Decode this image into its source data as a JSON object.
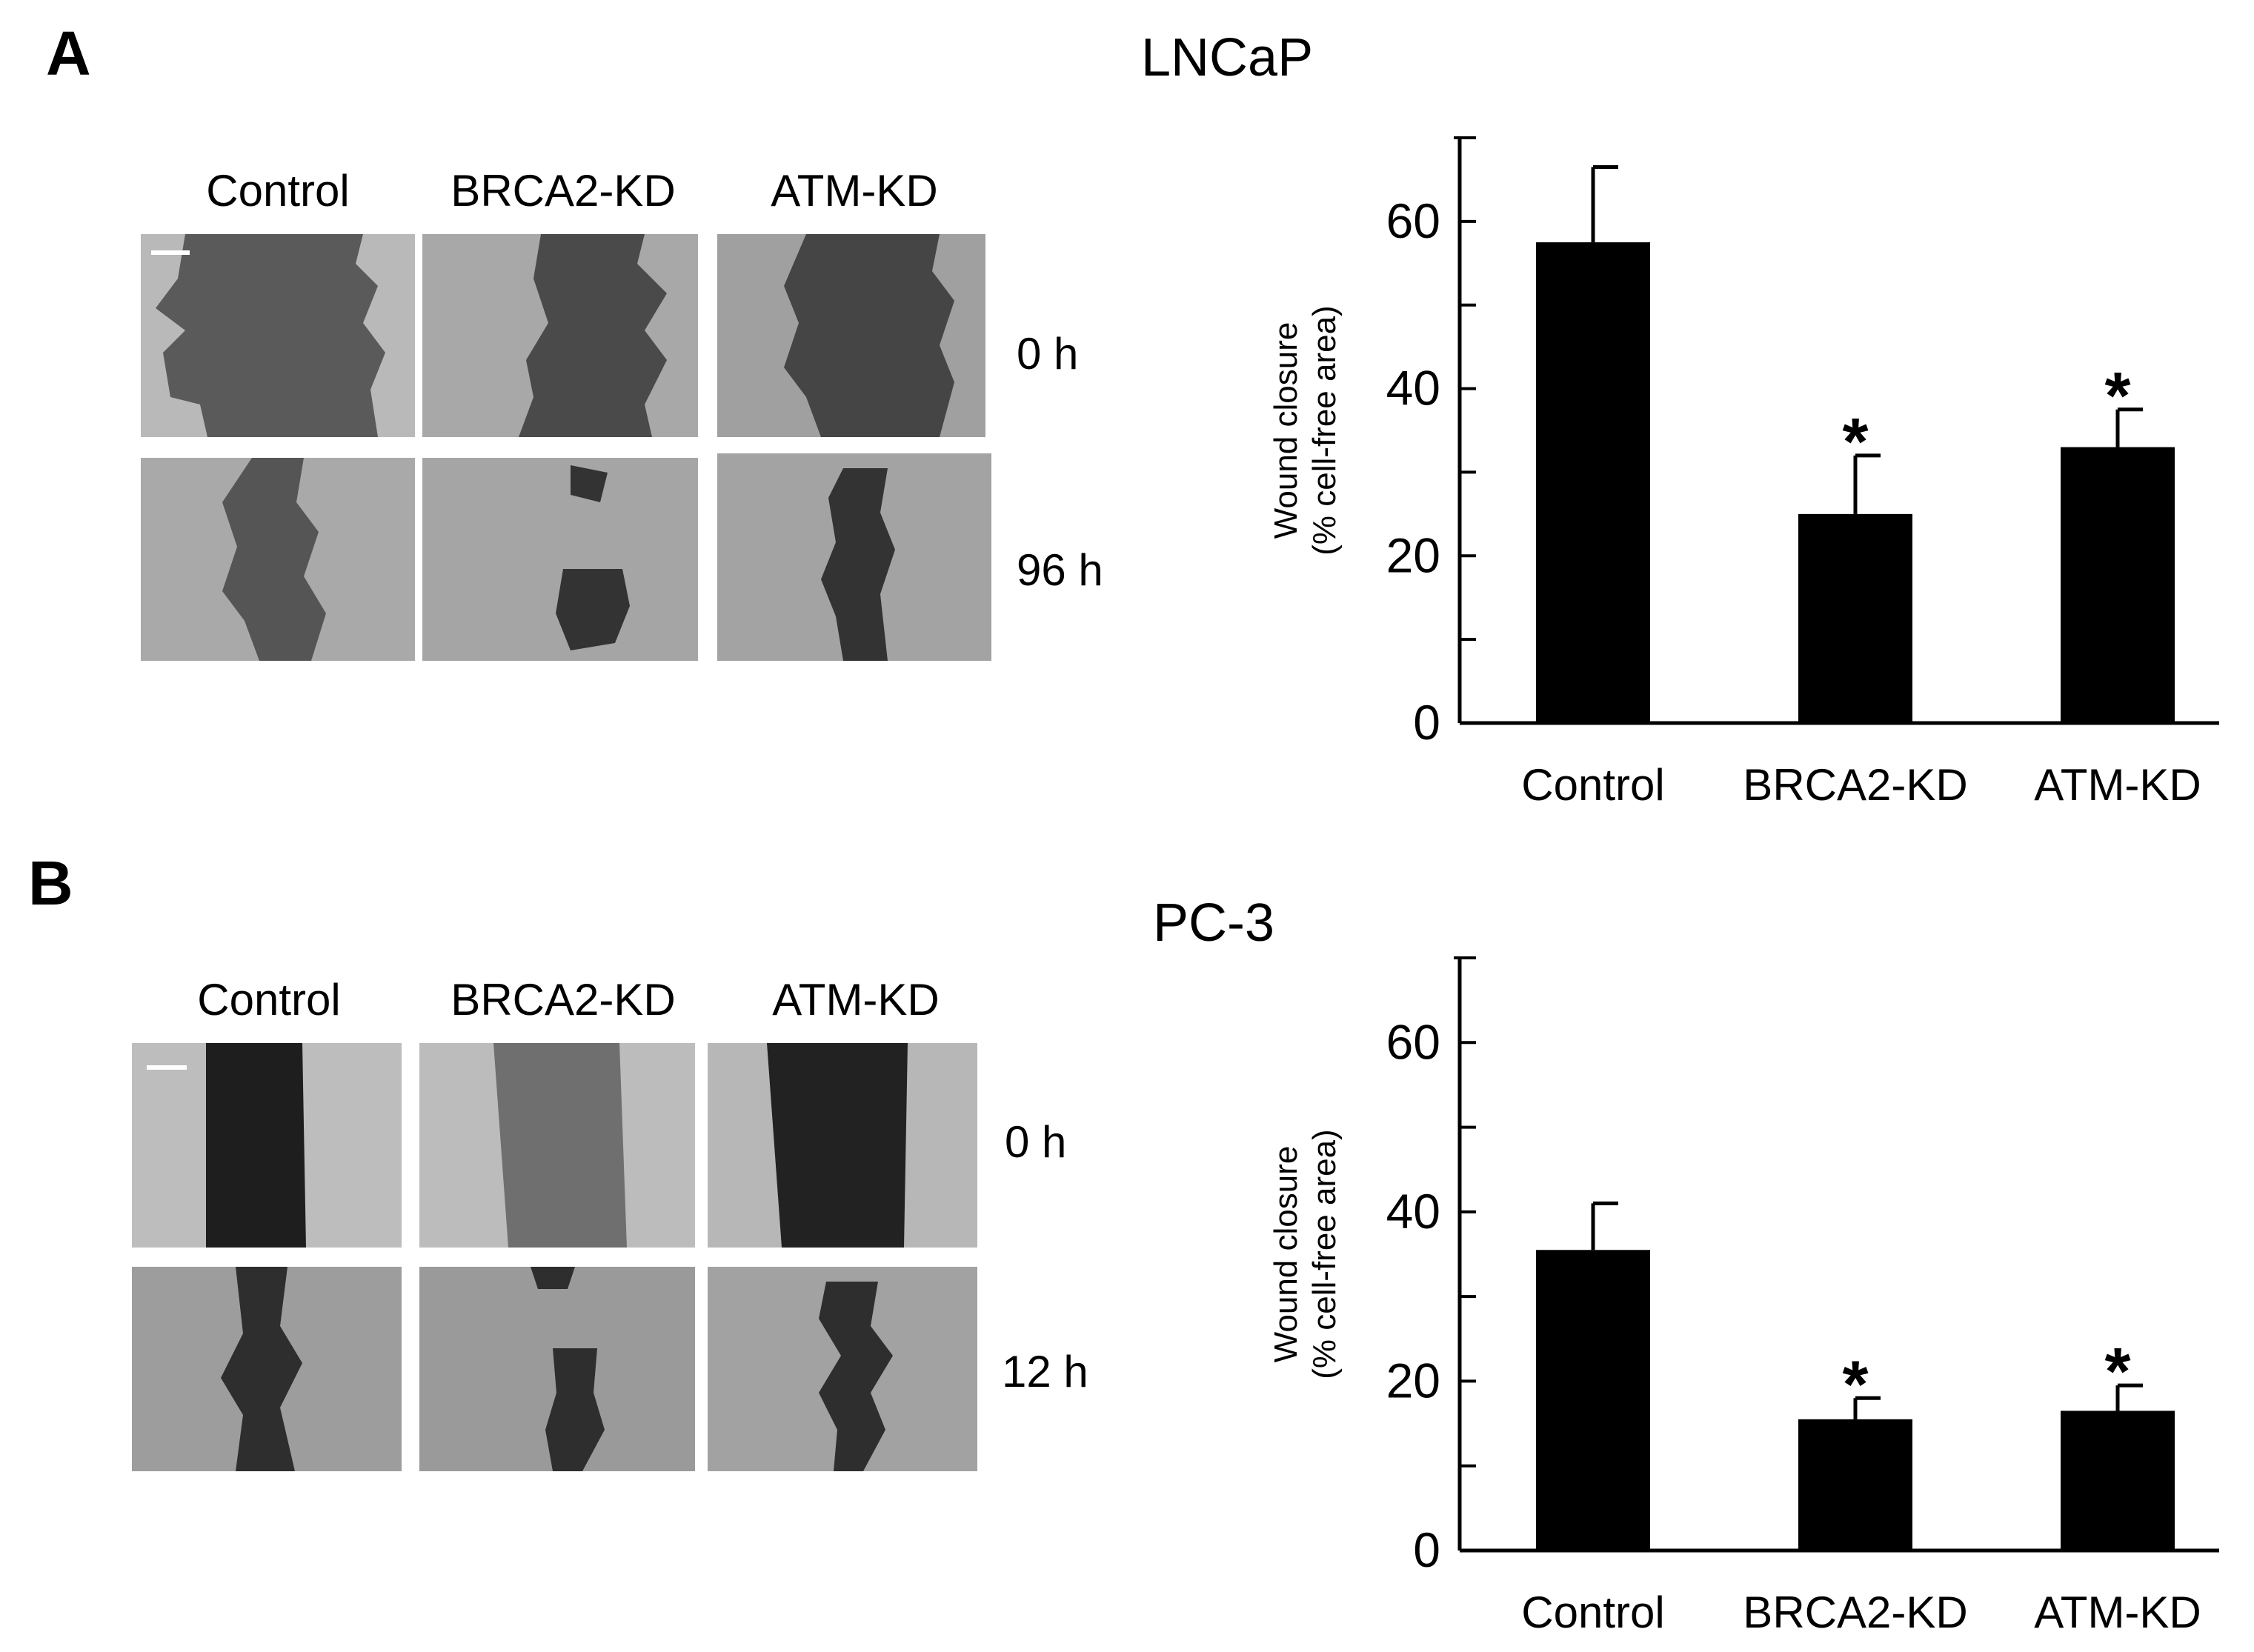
{
  "panels": [
    {
      "letter": "A",
      "cell_line": "LNCaP",
      "column_labels": [
        "Control",
        "BRCA2-KD",
        "ATM-KD"
      ],
      "time_labels": [
        "0 h",
        "96 h"
      ]
    },
    {
      "letter": "B",
      "cell_line": "PC-3",
      "column_labels": [
        "Control",
        "BRCA2-KD",
        "ATM-KD"
      ],
      "time_labels": [
        "0 h",
        "12 h"
      ]
    }
  ],
  "chart_data": [
    {
      "type": "bar",
      "categories": [
        "Control",
        "BRCA2-KD",
        "ATM-KD"
      ],
      "values": [
        57.5,
        25,
        33
      ],
      "errors": [
        9,
        7,
        4.5
      ],
      "significance": [
        "",
        "*",
        "*"
      ],
      "ylabel_line1": "Wound closure",
      "ylabel_line2": "(% cell-free area)",
      "yticks": [
        "0",
        "20",
        "40",
        "60"
      ],
      "ylim": [
        0,
        70
      ],
      "bar_color": "#000000"
    },
    {
      "type": "bar",
      "categories": [
        "Control",
        "BRCA2-KD",
        "ATM-KD"
      ],
      "values": [
        35.5,
        15.5,
        16.5
      ],
      "errors": [
        5.5,
        2.5,
        3
      ],
      "significance": [
        "",
        "*",
        "*"
      ],
      "ylabel_line1": "Wound closure",
      "ylabel_line2": "(% cell-free area)",
      "yticks": [
        "0",
        "20",
        "40",
        "60"
      ],
      "ylim": [
        0,
        70
      ],
      "bar_color": "#000000"
    }
  ]
}
